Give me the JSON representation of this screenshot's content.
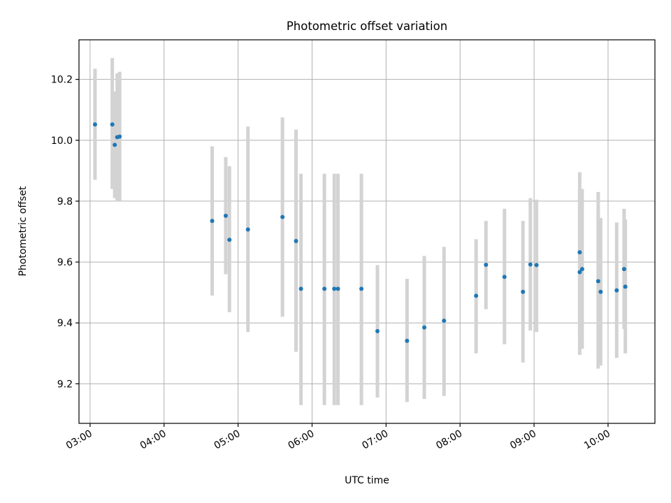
{
  "chart_data": {
    "type": "scatter",
    "title": "Photometric offset variation",
    "xlabel": "UTC time",
    "ylabel": "Photometric offset",
    "grid": true,
    "x_unit": "UTC time (HH:MM)",
    "xlim": [
      "02:51",
      "10:38"
    ],
    "ylim": [
      9.07,
      10.33
    ],
    "x_ticks": [
      "03:00",
      "04:00",
      "05:00",
      "06:00",
      "07:00",
      "08:00",
      "09:00",
      "10:00"
    ],
    "y_ticks": [
      "9.2",
      "9.4",
      "9.6",
      "9.8",
      "10.0",
      "10.2"
    ],
    "y_tick_values": [
      9.2,
      9.4,
      9.6,
      9.8,
      10.0,
      10.2
    ],
    "colors": {
      "points": "#1f77b4",
      "error_bars": "#d3d3d3",
      "grid": "#b0b0b0"
    },
    "points": [
      {
        "x": "03:04",
        "y": 10.052,
        "low": 9.87,
        "high": 10.235
      },
      {
        "x": "03:18",
        "y": 10.052,
        "low": 9.84,
        "high": 10.27
      },
      {
        "x": "03:20",
        "y": 9.985,
        "low": 9.81,
        "high": 10.16
      },
      {
        "x": "03:22",
        "y": 10.01,
        "low": 9.8,
        "high": 10.22
      },
      {
        "x": "03:24",
        "y": 10.012,
        "low": 9.8,
        "high": 10.225
      },
      {
        "x": "04:39",
        "y": 9.735,
        "low": 9.49,
        "high": 9.98
      },
      {
        "x": "04:50",
        "y": 9.752,
        "low": 9.56,
        "high": 9.945
      },
      {
        "x": "04:53",
        "y": 9.673,
        "low": 9.435,
        "high": 9.915
      },
      {
        "x": "05:08",
        "y": 9.707,
        "low": 9.37,
        "high": 10.045
      },
      {
        "x": "05:36",
        "y": 9.748,
        "low": 9.42,
        "high": 10.075
      },
      {
        "x": "05:47",
        "y": 9.669,
        "low": 9.305,
        "high": 10.035
      },
      {
        "x": "05:51",
        "y": 9.512,
        "low": 9.13,
        "high": 9.89
      },
      {
        "x": "06:10",
        "y": 9.512,
        "low": 9.13,
        "high": 9.89
      },
      {
        "x": "06:18",
        "y": 9.512,
        "low": 9.13,
        "high": 9.89
      },
      {
        "x": "06:21",
        "y": 9.512,
        "low": 9.13,
        "high": 9.89
      },
      {
        "x": "06:40",
        "y": 9.512,
        "low": 9.13,
        "high": 9.89
      },
      {
        "x": "06:53",
        "y": 9.373,
        "low": 9.155,
        "high": 9.59
      },
      {
        "x": "07:17",
        "y": 9.341,
        "low": 9.14,
        "high": 9.545
      },
      {
        "x": "07:31",
        "y": 9.385,
        "low": 9.15,
        "high": 9.62
      },
      {
        "x": "07:47",
        "y": 9.407,
        "low": 9.16,
        "high": 9.65
      },
      {
        "x": "08:13",
        "y": 9.489,
        "low": 9.3,
        "high": 9.675
      },
      {
        "x": "08:21",
        "y": 9.591,
        "low": 9.445,
        "high": 9.735
      },
      {
        "x": "08:36",
        "y": 9.551,
        "low": 9.33,
        "high": 9.775
      },
      {
        "x": "08:51",
        "y": 9.502,
        "low": 9.27,
        "high": 9.735
      },
      {
        "x": "08:57",
        "y": 9.592,
        "low": 9.375,
        "high": 9.81
      },
      {
        "x": "09:02",
        "y": 9.59,
        "low": 9.37,
        "high": 9.805
      },
      {
        "x": "09:37",
        "y": 9.632,
        "low": 9.37,
        "high": 9.895
      },
      {
        "x": "09:37",
        "y": 9.567,
        "low": 9.295,
        "high": 9.84
      },
      {
        "x": "09:39",
        "y": 9.577,
        "low": 9.315,
        "high": 9.84
      },
      {
        "x": "09:52",
        "y": 9.537,
        "low": 9.25,
        "high": 9.83
      },
      {
        "x": "09:54",
        "y": 9.502,
        "low": 9.26,
        "high": 9.745
      },
      {
        "x": "10:07",
        "y": 9.507,
        "low": 9.285,
        "high": 9.73
      },
      {
        "x": "10:13",
        "y": 9.577,
        "low": 9.38,
        "high": 9.775
      },
      {
        "x": "10:14",
        "y": 9.519,
        "low": 9.3,
        "high": 9.74
      }
    ]
  }
}
